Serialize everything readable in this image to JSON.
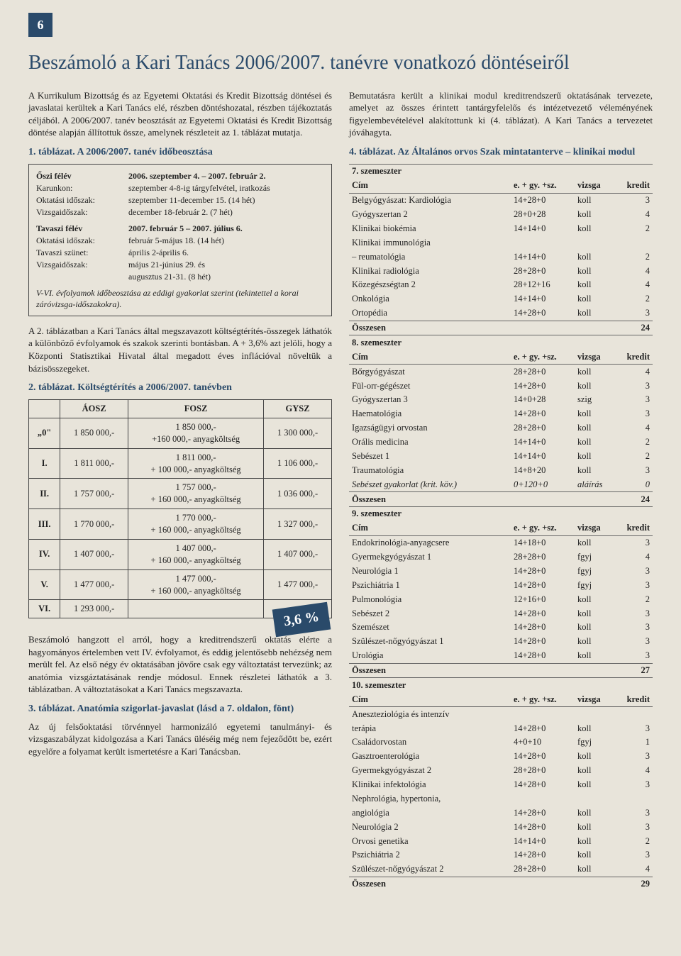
{
  "page_number": "6",
  "title": "Beszámoló a Kari Tanács 2006/2007. tanévre vonatkozó döntéseiről",
  "left": {
    "intro": "A Kurrikulum Bizottság és az Egyetemi Oktatási és Kredit Bizottság döntései és javaslatai kerültek a Kari Tanács elé, részben döntéshozatal, részben tájékoztatás céljából. A 2006/2007. tanév beosztását az Egyetemi Oktatási és Kredit Bizottság döntése alapján állítottuk össze, amelynek részleteit az 1. táblázat mutatja.",
    "t1_title": "1. táblázat. A 2006/2007. tanév időbeosztása",
    "t1": {
      "r1": {
        "l": "Őszi félév",
        "v": "2006. szeptember 4. – 2007. február 2."
      },
      "r2": {
        "l": "Karunkon:",
        "v": "szeptember 4-8-ig tárgyfelvétel, iratkozás"
      },
      "r3": {
        "l": "Oktatási időszak:",
        "v": "szeptember 11-december 15. (14 hét)"
      },
      "r4": {
        "l": "Vizsgaidőszak:",
        "v": "december 18-február 2. (7 hét)"
      },
      "r5": {
        "l": "Tavaszi félév",
        "v": "2007. február 5 – 2007. július 6."
      },
      "r6": {
        "l": "Oktatási időszak:",
        "v": "február 5-május 18. (14 hét)"
      },
      "r7": {
        "l": "Tavaszi szünet:",
        "v": "április 2-április 6."
      },
      "r8": {
        "l": "Vizsgaidőszak:",
        "v": "május 21-június 29. és"
      },
      "r8b": {
        "l": "",
        "v": "augusztus 21-31. (8 hét)"
      },
      "note": "V-VI. évfolyamok időbeosztása az eddigi gyakorlat szerint (tekintettel a korai záróvizsga-időszakokra)."
    },
    "p2": "A 2. táblázatban a Kari Tanács által megszavazott költségtérítés-összegek láthatók a különböző évfolyamok és szakok szerinti bontásban. A + 3,6% azt jelöli, hogy a Központi Statisztikai Hivatal által megadott éves inflációval növeltük a bázisösszegeket.",
    "t2_title": "2. táblázat. Költségtérítés a 2006/2007. tanévben",
    "t2_headers": {
      "h1": "ÁOSZ",
      "h2": "FOSZ",
      "h3": "GYSZ"
    },
    "t2_rows": [
      {
        "g": "„0\"",
        "a": "1 850 000,-",
        "f": "1 850 000,-\n+160 000,- anyagköltség",
        "gy": "1 300 000,-"
      },
      {
        "g": "I.",
        "a": "1 811 000,-",
        "f": "1 811 000,-\n+ 100 000,- anyagköltség",
        "gy": "1 106 000,-"
      },
      {
        "g": "II.",
        "a": "1 757 000,-",
        "f": "1 757 000,-\n+ 160 000,- anyagköltség",
        "gy": "1 036 000,-"
      },
      {
        "g": "III.",
        "a": "1 770 000,-",
        "f": "1 770 000,-\n+ 160 000,- anyagköltség",
        "gy": "1 327 000,-"
      },
      {
        "g": "IV.",
        "a": "1 407 000,-",
        "f": "1 407 000,-\n+ 160 000,- anyagköltség",
        "gy": "1 407 000,-"
      },
      {
        "g": "V.",
        "a": "1 477 000,-",
        "f": "1 477 000,-\n+ 160 000,- anyagköltség",
        "gy": "1 477 000,-"
      },
      {
        "g": "VI.",
        "a": "1 293 000,-",
        "f": "",
        "gy": ""
      }
    ],
    "badge": "3,6 %",
    "p3": "Beszámoló hangzott el arról, hogy a kreditrendszerű oktatás elérte a hagyományos értelemben vett IV. évfolyamot, és eddig jelentősebb nehézség nem merült fel. Az első négy év oktatásában jövőre csak egy változtatást tervezünk; az anatómia vizsgáztatásának rendje módosul. Ennek részletei láthatók a 3. táblázatban. A változtatásokat a Kari Tanács megszavazta.",
    "t3_title": "3. táblázat. Anatómia szigorlat-javaslat (lásd a 7. oldalon, fönt)",
    "p4": "Az új felsőoktatási törvénnyel harmonizáló egyetemi tanulmányi- és vizsgaszabályzat kidolgozása a Kari Tanács üléséig még nem fejeződött be, ezért egyelőre a folyamat került ismertetésre a Kari Tanácsban."
  },
  "right": {
    "intro": "Bemutatásra került a klinikai modul kreditrendszerű oktatásának tervezete, amelyet az összes érintett tantárgyfelelős és intézetvezető véleményének figyelembevételével alakítottunk ki (4. táblázat). A Kari Tanács a tervezetet jóváhagyta.",
    "t4_title": "4. táblázat. Az Általános orvos Szak mintatanterve – klinikai modul",
    "col_head": {
      "c1": "Cím",
      "c2": "e. + gy. +sz.",
      "c3": "vizsga",
      "c4": "kredit"
    },
    "semesters": [
      {
        "name": "7. szemeszter",
        "rows": [
          [
            "Belgyógyászat: Kardiológia",
            "14+28+0",
            "koll",
            "3"
          ],
          [
            "Gyógyszertan 2",
            "28+0+28",
            "koll",
            "4"
          ],
          [
            "Klinikai biokémia",
            "14+14+0",
            "koll",
            "2"
          ],
          [
            "Klinikai immunológia",
            "",
            "",
            ""
          ],
          [
            "  – reumatológia",
            "14+14+0",
            "koll",
            "2"
          ],
          [
            "Klinikai radiológia",
            "28+28+0",
            "koll",
            "4"
          ],
          [
            "Közegészségtan 2",
            "28+12+16",
            "koll",
            "4"
          ],
          [
            "Onkológia",
            "14+14+0",
            "koll",
            "2"
          ],
          [
            "Ortopédia",
            "14+28+0",
            "koll",
            "3"
          ]
        ],
        "sum": [
          "Összesen",
          "",
          "",
          "24"
        ]
      },
      {
        "name": "8. szemeszter",
        "rows": [
          [
            "Bőrgyógyászat",
            "28+28+0",
            "koll",
            "4"
          ],
          [
            "Fül-orr-gégészet",
            "14+28+0",
            "koll",
            "3"
          ],
          [
            "Gyógyszertan 3",
            "14+0+28",
            "szig",
            "3"
          ],
          [
            "Haematológia",
            "14+28+0",
            "koll",
            "3"
          ],
          [
            "Igazságügyi orvostan",
            "28+28+0",
            "koll",
            "4"
          ],
          [
            "Orális medicina",
            "14+14+0",
            "koll",
            "2"
          ],
          [
            "Sebészet 1",
            "14+14+0",
            "koll",
            "2"
          ],
          [
            "Traumatológia",
            "14+8+20",
            "koll",
            "3"
          ]
        ],
        "rows_ital": [
          [
            "Sebészet gyakorlat (krit. köv.)",
            "0+120+0",
            "aláírás",
            "0"
          ]
        ],
        "sum": [
          "Összesen",
          "",
          "",
          "24"
        ]
      },
      {
        "name": "9. szemeszter",
        "rows": [
          [
            "Endokrinológia-anyagcsere",
            "14+18+0",
            "koll",
            "3"
          ],
          [
            "Gyermekgyógyászat 1",
            "28+28+0",
            "fgyj",
            "4"
          ],
          [
            "Neurológia 1",
            "14+28+0",
            "fgyj",
            "3"
          ],
          [
            "Pszichiátria 1",
            "14+28+0",
            "fgyj",
            "3"
          ],
          [
            "Pulmonológia",
            "12+16+0",
            "koll",
            "2"
          ],
          [
            "Sebészet 2",
            "14+28+0",
            "koll",
            "3"
          ],
          [
            "Szemészet",
            "14+28+0",
            "koll",
            "3"
          ],
          [
            "Szülészet-nőgyógyászat 1",
            "14+28+0",
            "koll",
            "3"
          ],
          [
            "Urológia",
            "14+28+0",
            "koll",
            "3"
          ]
        ],
        "sum": [
          "Összesen",
          "",
          "",
          "27"
        ]
      },
      {
        "name": "10. szemeszter",
        "rows": [
          [
            "Aneszteziológia és intenzív",
            "",
            "",
            ""
          ],
          [
            "terápia",
            "14+28+0",
            "koll",
            "3"
          ],
          [
            "Családorvostan",
            "4+0+10",
            "fgyj",
            "1"
          ],
          [
            "Gasztroenterológia",
            "14+28+0",
            "koll",
            "3"
          ],
          [
            "Gyermekgyógyászat 2",
            "28+28+0",
            "koll",
            "4"
          ],
          [
            "Klinikai infektológia",
            "14+28+0",
            "koll",
            "3"
          ],
          [
            "Nephrológia, hypertonia,",
            "",
            "",
            ""
          ],
          [
            "angiológia",
            "14+28+0",
            "koll",
            "3"
          ],
          [
            "Neurológia 2",
            "14+28+0",
            "koll",
            "3"
          ],
          [
            "Orvosi genetika",
            "14+14+0",
            "koll",
            "2"
          ],
          [
            "Pszichiátria 2",
            "14+28+0",
            "koll",
            "3"
          ],
          [
            "Szülészet-nőgyógyászat 2",
            "28+28+0",
            "koll",
            "4"
          ]
        ],
        "sum": [
          "Összesen",
          "",
          "",
          "29"
        ]
      }
    ]
  },
  "colors": {
    "accent": "#2a4a6a",
    "bg": "#e8e4da",
    "text": "#222222",
    "rule": "#666666"
  }
}
